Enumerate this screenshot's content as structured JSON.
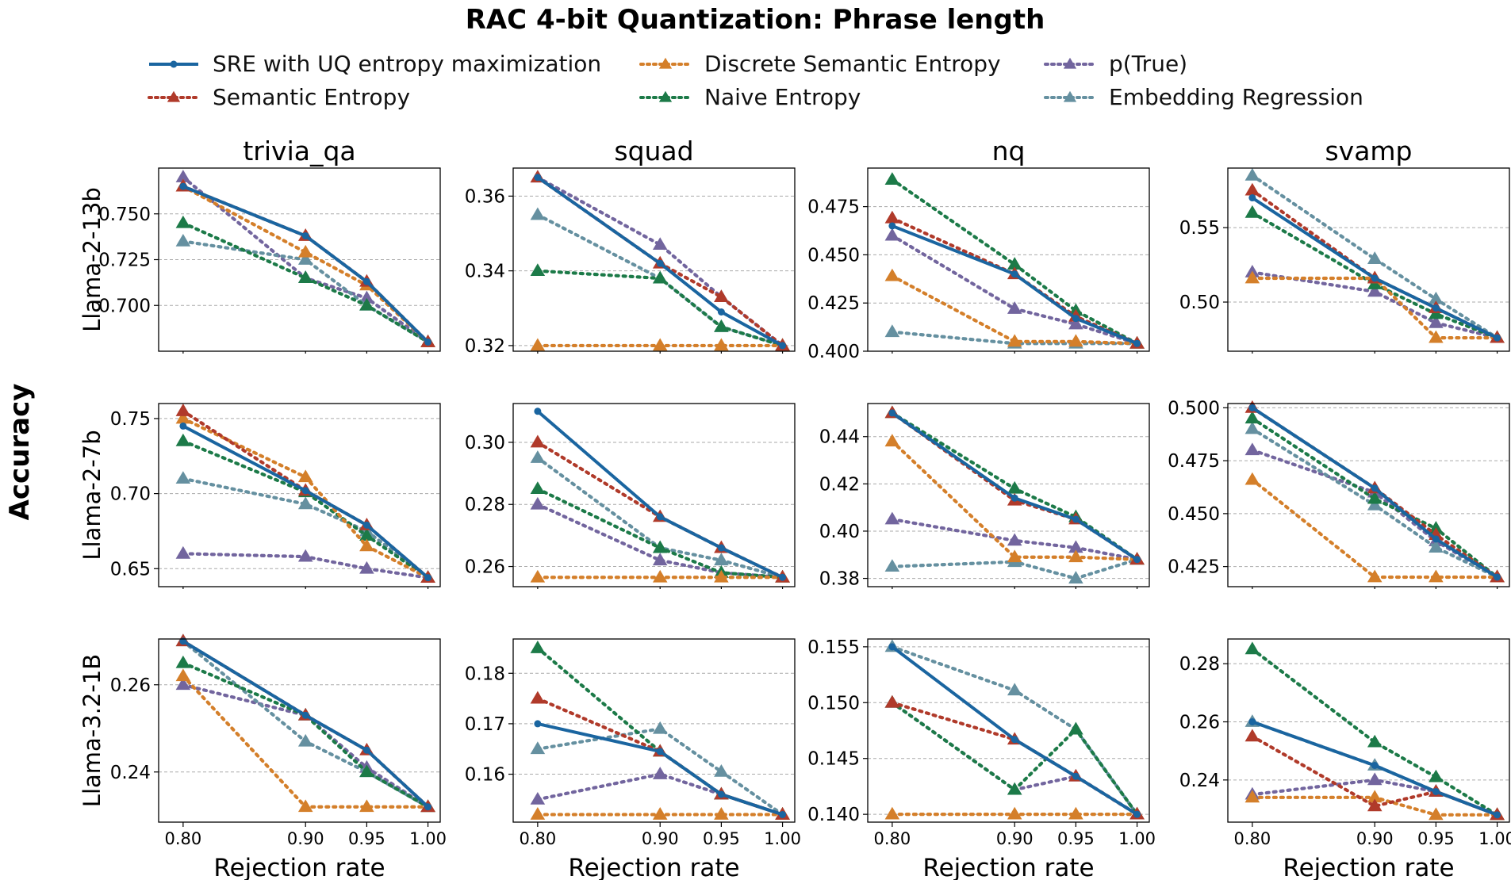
{
  "figure": {
    "title": "RAC 4-bit Quantization: Phrase length",
    "ylabel": "Accuracy",
    "xlabel": "Rejection rate",
    "columns": [
      "trivia_qa",
      "squad",
      "nq",
      "svamp"
    ],
    "rows": [
      "Llama-2-13b",
      "Llama-2-7b",
      "Llama-3.2-1B"
    ]
  },
  "legend": [
    {
      "key": "sre",
      "label": "SRE with UQ entropy maximization"
    },
    {
      "key": "dse",
      "label": "Discrete Semantic Entropy"
    },
    {
      "key": "ptrue",
      "label": "p(True)"
    },
    {
      "key": "se",
      "label": "Semantic Entropy"
    },
    {
      "key": "ne",
      "label": "Naive Entropy"
    },
    {
      "key": "er",
      "label": "Embedding Regression"
    }
  ],
  "colors": {
    "sre": "#1a65a0",
    "se": "#b03a2a",
    "dse": "#d47f2a",
    "ne": "#1c7a48",
    "ptrue": "#72659e",
    "er": "#6590a0",
    "grid": "#aaaaaa"
  },
  "chart_data": [
    {
      "type": "line",
      "row": "Llama-2-13b",
      "col": "trivia_qa",
      "x": [
        0.8,
        0.9,
        0.95,
        1.0
      ],
      "ylim": [
        0.675,
        0.775
      ],
      "yticks": [
        0.7,
        0.725,
        0.75
      ],
      "ytick_labels": [
        "0.700",
        "0.725",
        "0.750"
      ],
      "series": [
        {
          "key": "sre",
          "values": [
            0.765,
            0.738,
            0.713,
            0.68
          ]
        },
        {
          "key": "se",
          "values": [
            0.765,
            0.738,
            0.713,
            0.68
          ]
        },
        {
          "key": "dse",
          "values": [
            0.765,
            0.729,
            0.711,
            0.68
          ]
        },
        {
          "key": "ne",
          "values": [
            0.745,
            0.715,
            0.7,
            0.68
          ]
        },
        {
          "key": "ptrue",
          "values": [
            0.77,
            0.715,
            0.704,
            0.68
          ]
        },
        {
          "key": "er",
          "values": [
            0.735,
            0.725,
            0.7,
            0.68
          ]
        }
      ]
    },
    {
      "type": "line",
      "row": "Llama-2-13b",
      "col": "squad",
      "x": [
        0.8,
        0.9,
        0.95,
        1.0
      ],
      "ylim": [
        0.3185,
        0.3675
      ],
      "yticks": [
        0.32,
        0.34,
        0.36
      ],
      "ytick_labels": [
        "0.32",
        "0.34",
        "0.36"
      ],
      "series": [
        {
          "key": "sre",
          "values": [
            0.365,
            0.342,
            0.329,
            0.32
          ]
        },
        {
          "key": "se",
          "values": [
            0.365,
            0.342,
            0.333,
            0.32
          ]
        },
        {
          "key": "dse",
          "values": [
            0.32,
            0.32,
            0.32,
            0.32
          ]
        },
        {
          "key": "ne",
          "values": [
            0.34,
            0.338,
            0.325,
            0.32
          ]
        },
        {
          "key": "ptrue",
          "values": [
            0.365,
            0.347,
            0.333,
            0.32
          ]
        },
        {
          "key": "er",
          "values": [
            0.355,
            0.338,
            0.325,
            0.32
          ]
        }
      ]
    },
    {
      "type": "line",
      "row": "Llama-2-13b",
      "col": "nq",
      "x": [
        0.8,
        0.9,
        0.95,
        1.0
      ],
      "ylim": [
        0.4,
        0.495
      ],
      "yticks": [
        0.4,
        0.425,
        0.45,
        0.475
      ],
      "ytick_labels": [
        "0.400",
        "0.425",
        "0.450",
        "0.475"
      ],
      "series": [
        {
          "key": "sre",
          "values": [
            0.465,
            0.44,
            0.417,
            0.404
          ]
        },
        {
          "key": "se",
          "values": [
            0.469,
            0.44,
            0.418,
            0.404
          ]
        },
        {
          "key": "dse",
          "values": [
            0.439,
            0.405,
            0.405,
            0.404
          ]
        },
        {
          "key": "ne",
          "values": [
            0.489,
            0.445,
            0.421,
            0.404
          ]
        },
        {
          "key": "ptrue",
          "values": [
            0.46,
            0.422,
            0.414,
            0.404
          ]
        },
        {
          "key": "er",
          "values": [
            0.41,
            0.404,
            0.404,
            0.404
          ]
        }
      ]
    },
    {
      "type": "line",
      "row": "Llama-2-13b",
      "col": "svamp",
      "x": [
        0.8,
        0.9,
        0.95,
        1.0
      ],
      "ylim": [
        0.467,
        0.59
      ],
      "yticks": [
        0.5,
        0.55
      ],
      "ytick_labels": [
        "0.50",
        "0.55"
      ],
      "series": [
        {
          "key": "sre",
          "values": [
            0.57,
            0.516,
            0.496,
            0.476
          ]
        },
        {
          "key": "se",
          "values": [
            0.575,
            0.516,
            0.496,
            0.476
          ]
        },
        {
          "key": "dse",
          "values": [
            0.516,
            0.516,
            0.476,
            0.476
          ]
        },
        {
          "key": "ne",
          "values": [
            0.56,
            0.512,
            0.492,
            0.476
          ]
        },
        {
          "key": "ptrue",
          "values": [
            0.52,
            0.507,
            0.486,
            0.476
          ]
        },
        {
          "key": "er",
          "values": [
            0.585,
            0.529,
            0.502,
            0.476
          ]
        }
      ]
    },
    {
      "type": "line",
      "row": "Llama-2-7b",
      "col": "trivia_qa",
      "x": [
        0.8,
        0.9,
        0.95,
        1.0
      ],
      "ylim": [
        0.638,
        0.76
      ],
      "yticks": [
        0.65,
        0.7,
        0.75
      ],
      "ytick_labels": [
        "0.65",
        "0.70",
        "0.75"
      ],
      "series": [
        {
          "key": "sre",
          "values": [
            0.745,
            0.702,
            0.679,
            0.644
          ]
        },
        {
          "key": "se",
          "values": [
            0.755,
            0.702,
            0.679,
            0.644
          ]
        },
        {
          "key": "dse",
          "values": [
            0.75,
            0.711,
            0.665,
            0.644
          ]
        },
        {
          "key": "ne",
          "values": [
            0.735,
            0.701,
            0.672,
            0.644
          ]
        },
        {
          "key": "ptrue",
          "values": [
            0.66,
            0.658,
            0.65,
            0.644
          ]
        },
        {
          "key": "er",
          "values": [
            0.71,
            0.693,
            0.675,
            0.644
          ]
        }
      ]
    },
    {
      "type": "line",
      "row": "Llama-2-7b",
      "col": "squad",
      "x": [
        0.8,
        0.9,
        0.95,
        1.0
      ],
      "ylim": [
        0.2535,
        0.3125
      ],
      "yticks": [
        0.26,
        0.28,
        0.3
      ],
      "ytick_labels": [
        "0.26",
        "0.28",
        "0.30"
      ],
      "series": [
        {
          "key": "sre",
          "values": [
            0.31,
            0.276,
            0.266,
            0.2565
          ]
        },
        {
          "key": "se",
          "values": [
            0.3,
            0.276,
            0.266,
            0.2565
          ]
        },
        {
          "key": "dse",
          "values": [
            0.2565,
            0.2565,
            0.2565,
            0.2565
          ]
        },
        {
          "key": "ne",
          "values": [
            0.285,
            0.266,
            0.258,
            0.2565
          ]
        },
        {
          "key": "ptrue",
          "values": [
            0.28,
            0.262,
            0.258,
            0.2565
          ]
        },
        {
          "key": "er",
          "values": [
            0.295,
            0.266,
            0.262,
            0.2565
          ]
        }
      ]
    },
    {
      "type": "line",
      "row": "Llama-2-7b",
      "col": "nq",
      "x": [
        0.8,
        0.9,
        0.95,
        1.0
      ],
      "ylim": [
        0.3765,
        0.454
      ],
      "yticks": [
        0.38,
        0.4,
        0.42,
        0.44
      ],
      "ytick_labels": [
        "0.38",
        "0.40",
        "0.42",
        "0.44"
      ],
      "series": [
        {
          "key": "sre",
          "values": [
            0.45,
            0.414,
            0.405,
            0.388
          ]
        },
        {
          "key": "se",
          "values": [
            0.45,
            0.413,
            0.405,
            0.388
          ]
        },
        {
          "key": "dse",
          "values": [
            0.438,
            0.389,
            0.389,
            0.388
          ]
        },
        {
          "key": "ne",
          "values": [
            0.45,
            0.418,
            0.406,
            0.388
          ]
        },
        {
          "key": "ptrue",
          "values": [
            0.405,
            0.396,
            0.393,
            0.388
          ]
        },
        {
          "key": "er",
          "values": [
            0.385,
            0.387,
            0.38,
            0.388
          ]
        }
      ]
    },
    {
      "type": "line",
      "row": "Llama-2-7b",
      "col": "svamp",
      "x": [
        0.8,
        0.9,
        0.95,
        1.0
      ],
      "ylim": [
        0.4155,
        0.502
      ],
      "yticks": [
        0.425,
        0.45,
        0.475,
        0.5
      ],
      "ytick_labels": [
        "0.425",
        "0.450",
        "0.475",
        "0.500"
      ],
      "series": [
        {
          "key": "sre",
          "values": [
            0.5,
            0.462,
            0.438,
            0.42
          ]
        },
        {
          "key": "se",
          "values": [
            0.5,
            0.462,
            0.44,
            0.42
          ]
        },
        {
          "key": "dse",
          "values": [
            0.466,
            0.42,
            0.42,
            0.42
          ]
        },
        {
          "key": "ne",
          "values": [
            0.495,
            0.457,
            0.443,
            0.42
          ]
        },
        {
          "key": "ptrue",
          "values": [
            0.48,
            0.46,
            0.437,
            0.42
          ]
        },
        {
          "key": "er",
          "values": [
            0.49,
            0.454,
            0.434,
            0.42
          ]
        }
      ]
    },
    {
      "type": "line",
      "row": "Llama-3.2-1B",
      "col": "trivia_qa",
      "x": [
        0.8,
        0.9,
        0.95,
        1.0
      ],
      "ylim": [
        0.2285,
        0.2705
      ],
      "yticks": [
        0.24,
        0.26
      ],
      "ytick_labels": [
        "0.24",
        "0.26"
      ],
      "series": [
        {
          "key": "sre",
          "values": [
            0.27,
            0.253,
            0.245,
            0.232
          ]
        },
        {
          "key": "se",
          "values": [
            0.27,
            0.253,
            0.245,
            0.232
          ]
        },
        {
          "key": "dse",
          "values": [
            0.262,
            0.232,
            0.232,
            0.232
          ]
        },
        {
          "key": "ne",
          "values": [
            0.265,
            0.253,
            0.24,
            0.232
          ]
        },
        {
          "key": "ptrue",
          "values": [
            0.26,
            0.253,
            0.241,
            0.232
          ]
        },
        {
          "key": "er",
          "values": [
            0.27,
            0.247,
            0.24,
            0.232
          ]
        }
      ]
    },
    {
      "type": "line",
      "row": "Llama-3.2-1B",
      "col": "squad",
      "x": [
        0.8,
        0.9,
        0.95,
        1.0
      ],
      "ylim": [
        0.1505,
        0.1868
      ],
      "yticks": [
        0.16,
        0.17,
        0.18
      ],
      "ytick_labels": [
        "0.16",
        "0.17",
        "0.18"
      ],
      "series": [
        {
          "key": "sre",
          "values": [
            0.17,
            0.1645,
            0.156,
            0.152
          ]
        },
        {
          "key": "se",
          "values": [
            0.175,
            0.1645,
            0.156,
            0.152
          ]
        },
        {
          "key": "dse",
          "values": [
            0.152,
            0.152,
            0.152,
            0.152
          ]
        },
        {
          "key": "ne",
          "values": [
            0.185,
            0.1645,
            0.156,
            0.152
          ]
        },
        {
          "key": "ptrue",
          "values": [
            0.155,
            0.16,
            0.156,
            0.152
          ]
        },
        {
          "key": "er",
          "values": [
            0.165,
            0.169,
            0.1605,
            0.152
          ]
        }
      ]
    },
    {
      "type": "line",
      "row": "Llama-3.2-1B",
      "col": "nq",
      "x": [
        0.8,
        0.9,
        0.95,
        1.0
      ],
      "ylim": [
        0.1393,
        0.1557
      ],
      "yticks": [
        0.14,
        0.145,
        0.15,
        0.155
      ],
      "ytick_labels": [
        "0.140",
        "0.145",
        "0.150",
        "0.155"
      ],
      "series": [
        {
          "key": "sre",
          "values": [
            0.155,
            0.1467,
            0.1434,
            0.14
          ]
        },
        {
          "key": "se",
          "values": [
            0.15,
            0.1467,
            0.1434,
            0.14
          ]
        },
        {
          "key": "dse",
          "values": [
            0.14,
            0.14,
            0.14,
            0.14
          ]
        },
        {
          "key": "ne",
          "values": [
            0.15,
            0.1422,
            0.1476,
            0.14
          ]
        },
        {
          "key": "ptrue",
          "values": [
            0.15,
            0.1422,
            0.1434,
            0.14
          ]
        },
        {
          "key": "er",
          "values": [
            0.155,
            0.1511,
            0.1476,
            0.14
          ]
        }
      ]
    },
    {
      "type": "line",
      "row": "Llama-3.2-1B",
      "col": "svamp",
      "x": [
        0.8,
        0.9,
        0.95,
        1.0
      ],
      "ylim": [
        0.2255,
        0.2885
      ],
      "yticks": [
        0.24,
        0.26,
        0.28
      ],
      "ytick_labels": [
        "0.24",
        "0.26",
        "0.28"
      ],
      "series": [
        {
          "key": "sre",
          "values": [
            0.26,
            0.245,
            0.236,
            0.228
          ]
        },
        {
          "key": "se",
          "values": [
            0.255,
            0.231,
            0.236,
            0.228
          ]
        },
        {
          "key": "dse",
          "values": [
            0.234,
            0.234,
            0.228,
            0.228
          ]
        },
        {
          "key": "ne",
          "values": [
            0.285,
            0.253,
            0.241,
            0.228
          ]
        },
        {
          "key": "ptrue",
          "values": [
            0.235,
            0.24,
            0.236,
            0.228
          ]
        },
        {
          "key": "er",
          "values": [
            0.26,
            0.245,
            0.236,
            0.228
          ]
        }
      ]
    }
  ]
}
